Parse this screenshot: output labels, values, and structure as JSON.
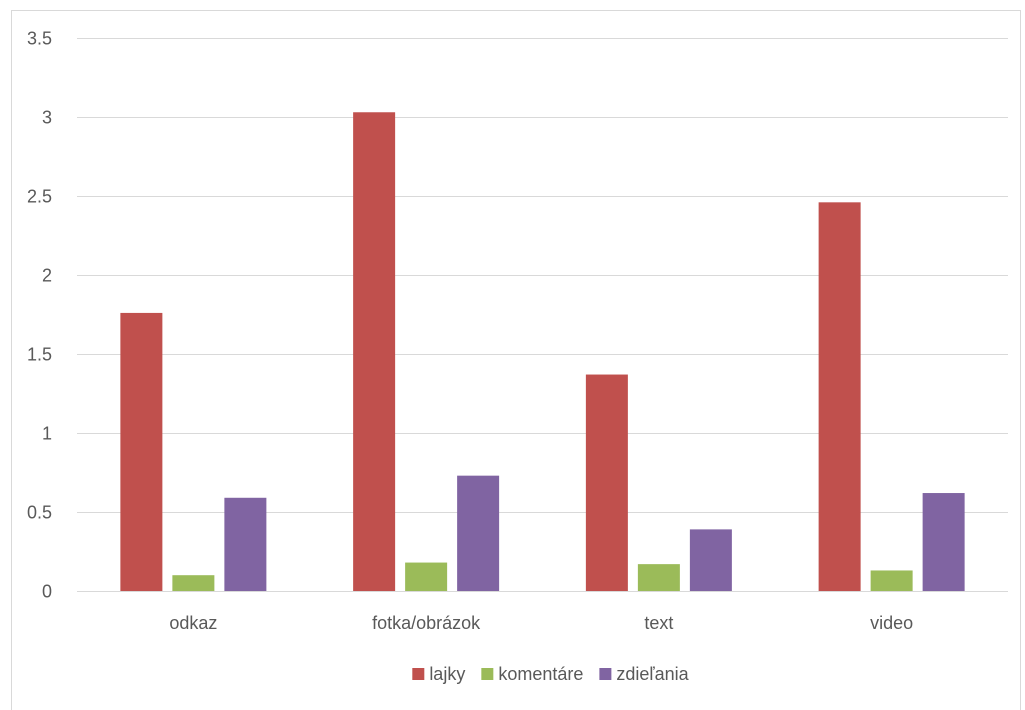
{
  "chart_data": {
    "type": "bar",
    "categories": [
      "odkaz",
      "fotka/obrázok",
      "text",
      "video"
    ],
    "series": [
      {
        "name": "lajky",
        "color": "#c0504d",
        "values": [
          1.76,
          3.03,
          1.37,
          2.46
        ]
      },
      {
        "name": "komentáre",
        "color": "#9bbb59",
        "values": [
          0.1,
          0.18,
          0.17,
          0.13
        ]
      },
      {
        "name": "zdieľania",
        "color": "#8064a2",
        "values": [
          0.59,
          0.73,
          0.39,
          0.62
        ]
      }
    ],
    "yticks": [
      "0",
      "0.5",
      "1",
      "1.5",
      "2",
      "2.5",
      "3",
      "3.5"
    ],
    "ylim": [
      0,
      3.5
    ],
    "grid": true,
    "legend": "bottom",
    "title": "",
    "xlabel": "",
    "ylabel": ""
  }
}
